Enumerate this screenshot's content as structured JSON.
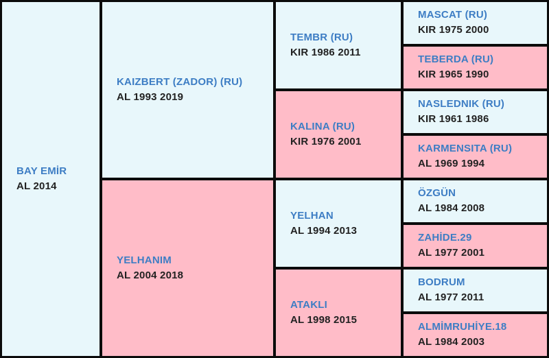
{
  "pedigree_title": "Horse pedigree table",
  "colors": {
    "sire_bg": "#e8f7fb",
    "dam_bg": "#ffbcc8",
    "name_color": "#3d7dc4",
    "detail_color": "#222222",
    "border_color": "#0b0b0b"
  },
  "cells": [
    {
      "name": "BAY EMİR",
      "details": "AL 2014",
      "generation": 0,
      "type": "sire"
    },
    {
      "name": "KAIZBERT (ZADOR) (RU)",
      "details": "AL 1993 2019",
      "generation": 1,
      "type": "sire"
    },
    {
      "name": "YELHANIM",
      "details": "AL 2004 2018",
      "generation": 1,
      "type": "dam"
    },
    {
      "name": "TEMBR (RU)",
      "details": "KIR 1986 2011",
      "generation": 2,
      "type": "sire"
    },
    {
      "name": "KALINA (RU)",
      "details": "KIR 1976 2001",
      "generation": 2,
      "type": "dam"
    },
    {
      "name": "YELHAN",
      "details": "AL 1994 2013",
      "generation": 2,
      "type": "sire"
    },
    {
      "name": "ATAKLI",
      "details": "AL 1998 2015",
      "generation": 2,
      "type": "dam"
    },
    {
      "name": "MASCAT (RU)",
      "details": "KIR 1975 2000",
      "generation": 3,
      "type": "sire"
    },
    {
      "name": "TEBERDA (RU)",
      "details": "KIR 1965 1990",
      "generation": 3,
      "type": "dam"
    },
    {
      "name": "NASLEDNIK (RU)",
      "details": "KIR 1961 1986",
      "generation": 3,
      "type": "sire"
    },
    {
      "name": "KARMENSITA (RU)",
      "details": "AL 1969 1994",
      "generation": 3,
      "type": "dam"
    },
    {
      "name": "ÖZGÜN",
      "details": "AL 1984 2008",
      "generation": 3,
      "type": "sire"
    },
    {
      "name": "ZAHİDE.29",
      "details": "AL 1977 2001",
      "generation": 3,
      "type": "dam"
    },
    {
      "name": "BODRUM",
      "details": "AL 1977 2011",
      "generation": 3,
      "type": "sire"
    },
    {
      "name": "ALMİMRUHİYE.18",
      "details": "AL 1984 2003",
      "generation": 3,
      "type": "dam"
    }
  ]
}
